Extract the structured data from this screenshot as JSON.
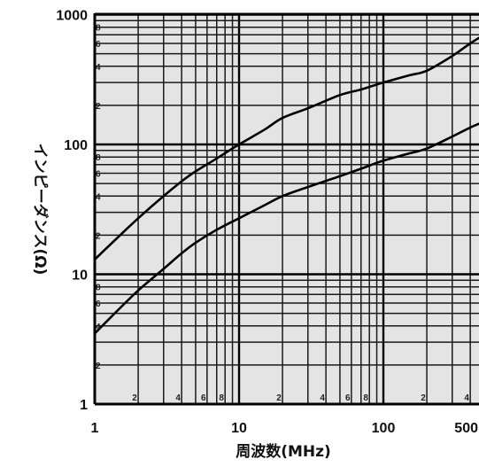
{
  "chart_data": {
    "type": "line",
    "xlabel": "周波数(MHz)",
    "ylabel": "インピーダンス(Ω)",
    "x_scale": "log",
    "y_scale": "log",
    "xlim": [
      1,
      500
    ],
    "ylim": [
      1,
      1000
    ],
    "x_tick_labels": [
      "1",
      "10",
      "100",
      "500"
    ],
    "x_minor_labels": [
      "2",
      "4",
      "6",
      "8",
      "2",
      "4",
      "6",
      "8",
      "2",
      "4"
    ],
    "y_tick_labels": [
      "1",
      "10",
      "100",
      "1000"
    ],
    "y_minor_labels": [
      "2",
      "4",
      "6",
      "8",
      "2",
      "4",
      "6",
      "8",
      "2",
      "4",
      "6",
      "8"
    ],
    "grid": true,
    "series": [
      {
        "x": [
          1,
          1.5,
          2,
          3,
          4,
          5,
          7,
          10,
          15,
          20,
          30,
          50,
          70,
          100,
          150,
          200,
          300,
          400,
          500
        ],
        "y": [
          13,
          20,
          27,
          40,
          52,
          62,
          78,
          100,
          130,
          160,
          190,
          240,
          265,
          300,
          340,
          370,
          480,
          600,
          700
        ]
      },
      {
        "x": [
          1,
          1.5,
          2,
          3,
          4,
          5,
          7,
          10,
          15,
          20,
          30,
          50,
          70,
          100,
          150,
          200,
          300,
          400,
          500
        ],
        "y": [
          3.5,
          5.5,
          7.5,
          11,
          14.5,
          17.5,
          22,
          27,
          34,
          40,
          47,
          57,
          65,
          75,
          85,
          93,
          115,
          135,
          150
        ]
      }
    ]
  }
}
